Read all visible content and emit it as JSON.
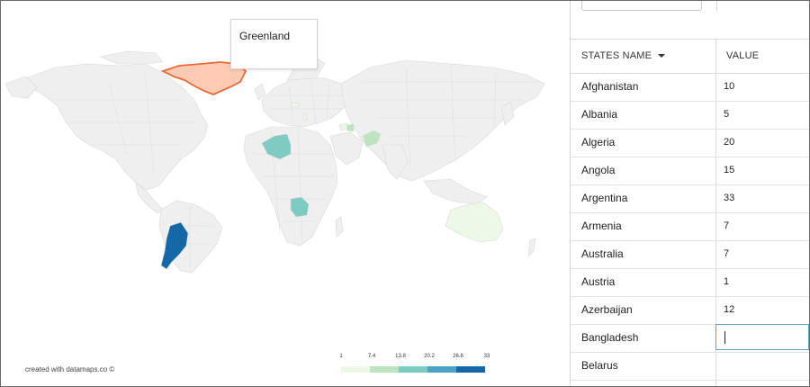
{
  "tooltip": {
    "text": "Greenland"
  },
  "credit": "created with datamaps.co ©",
  "legend": {
    "ticks": [
      "1",
      "7.4",
      "13.8",
      "20.2",
      "26.6",
      "33"
    ],
    "colors": [
      "#edf8e9",
      "#bde4bf",
      "#7ecbc1",
      "#4ba3cc",
      "#1568a8"
    ]
  },
  "colors": {
    "land": "#efefef",
    "border": "#d9d9d9",
    "hover_fill": "#fdcab4",
    "hover_stroke": "#ea6a35"
  },
  "table": {
    "headers": {
      "name": "STATES NAME",
      "value": "VALUE"
    },
    "sort_icon": "caret-down-icon",
    "rows": [
      {
        "name": "Afghanistan",
        "value": "10"
      },
      {
        "name": "Albania",
        "value": "5"
      },
      {
        "name": "Algeria",
        "value": "20"
      },
      {
        "name": "Angola",
        "value": "15"
      },
      {
        "name": "Argentina",
        "value": "33"
      },
      {
        "name": "Armenia",
        "value": "7"
      },
      {
        "name": "Australia",
        "value": "7"
      },
      {
        "name": "Austria",
        "value": "1"
      },
      {
        "name": "Azerbaijan",
        "value": "12"
      },
      {
        "name": "Bangladesh",
        "value": ""
      },
      {
        "name": "Belarus",
        "value": ""
      }
    ],
    "editing_row": 9
  },
  "map_regions": [
    {
      "id": "greenland",
      "name": "Greenland",
      "value": null,
      "state": "hover"
    },
    {
      "id": "algeria",
      "name": "Algeria",
      "value": 20
    },
    {
      "id": "angola",
      "name": "Angola",
      "value": 15
    },
    {
      "id": "argentina",
      "name": "Argentina",
      "value": 33
    },
    {
      "id": "afghanistan",
      "name": "Afghanistan",
      "value": 10
    },
    {
      "id": "armenia",
      "name": "Armenia",
      "value": 7
    },
    {
      "id": "azerbaijan",
      "name": "Azerbaijan",
      "value": 12
    },
    {
      "id": "australia",
      "name": "Australia",
      "value": 7
    },
    {
      "id": "albania",
      "name": "Albania",
      "value": 5
    },
    {
      "id": "austria",
      "name": "Austria",
      "value": 1
    }
  ]
}
